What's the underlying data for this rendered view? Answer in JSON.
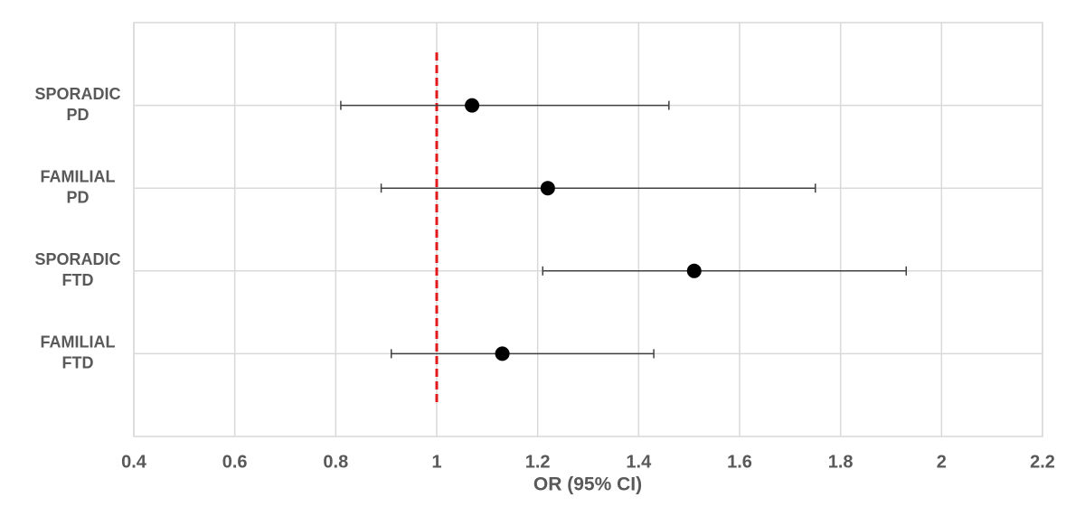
{
  "chart_data": {
    "type": "forest",
    "categories": [
      [
        "SPORADIC",
        "PD"
      ],
      [
        "FAMILIAL",
        "PD"
      ],
      [
        "SPORADIC",
        "FTD"
      ],
      [
        "FAMILIAL",
        "FTD"
      ]
    ],
    "values": [
      1.07,
      1.22,
      1.51,
      1.13
    ],
    "lower": [
      0.81,
      0.89,
      1.21,
      0.91
    ],
    "upper": [
      1.46,
      1.75,
      1.93,
      1.43
    ],
    "color": "#000000",
    "error_color": "#404040",
    "reference_line": 1,
    "reference_color": "#e31a1c",
    "xlabel": "OR (95% CI)",
    "xlim": [
      0.4,
      2.2
    ],
    "xticks": [
      0.4,
      0.6,
      0.8,
      1,
      1.2,
      1.4,
      1.6,
      1.8,
      2,
      2.2
    ],
    "grid": true
  }
}
